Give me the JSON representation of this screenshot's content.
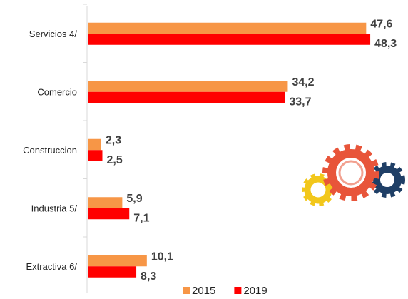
{
  "chart_data": {
    "type": "hbar",
    "categories": [
      "Servicios 4/",
      "Comercio",
      "Construccion",
      "Industria 5/",
      "Extractiva 6/"
    ],
    "series": [
      {
        "name": "2015",
        "color": "#f79646",
        "values": [
          47.6,
          34.2,
          2.3,
          5.9,
          10.1
        ],
        "value_labels": [
          "47,6",
          "34,2",
          "2,3",
          "5,9",
          "10,1"
        ]
      },
      {
        "name": "2019",
        "color": "#ff0000",
        "values": [
          48.3,
          33.7,
          2.5,
          7.1,
          8.3
        ],
        "value_labels": [
          "48,3",
          "33,7",
          "2,5",
          "7,1",
          "8,3"
        ]
      }
    ],
    "legend": "bottom"
  }
}
